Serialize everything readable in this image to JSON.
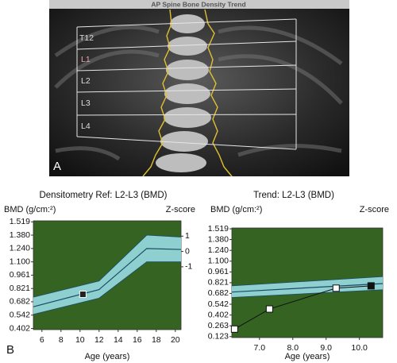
{
  "image": {
    "title": "AP Spine Bone Density Trend",
    "regions": [
      "T12",
      "L1",
      "L2",
      "L3",
      "L4"
    ],
    "panel": "A"
  },
  "panel": "B",
  "chart_data": [
    {
      "type": "line",
      "title": "Densitometry Ref: L2-L3 (BMD)",
      "ylabel": "BMD (g/cm:²)",
      "y2label": "Z-score",
      "xlabel": "Age (years)",
      "plot_color": "#356321",
      "xlim": [
        5.1,
        20.6
      ],
      "xticks": [
        6,
        8,
        10,
        12,
        14,
        16,
        18,
        20
      ],
      "ylim": [
        0.39,
        1.53
      ],
      "yticks": [
        1.519,
        {
          "value": 1.38,
          "label": "1.380"
        },
        {
          "value": 1.24,
          "label": "1.240"
        },
        {
          "value": 1.1,
          "label": "1.100"
        },
        0.961,
        0.821,
        0.682,
        0.542,
        0.402
      ],
      "y2lim": [
        -5.1,
        2.0
      ],
      "y2ticks": [
        1,
        0,
        -1
      ],
      "band": {
        "x": [
          5.1,
          12,
          17,
          20.6
        ],
        "upper": [
          0.73,
          0.9,
          1.38,
          1.36
        ],
        "lower": [
          0.55,
          0.72,
          1.1,
          1.1
        ],
        "color": "#8ecfd0"
      },
      "series": [
        {
          "x": [
            5.1,
            12,
            17,
            20.6
          ],
          "values": [
            0.63,
            0.81,
            1.24,
            1.23
          ],
          "color": "#1d4a66"
        }
      ],
      "points": {
        "x": [
          10.3
        ],
        "values": [
          0.76
        ],
        "fills": [
          "#222222"
        ],
        "connect": false
      }
    },
    {
      "type": "line",
      "title": "Trend: L2-L3 (BMD)",
      "ylabel": "BMD (g/cm:²)",
      "y2label": "Z-score",
      "xlabel": "Age (years)",
      "plot_color": "#356321",
      "xlim": [
        6.17,
        10.7
      ],
      "xticks": [
        {
          "value": 7,
          "label": "7.0"
        },
        {
          "value": 8,
          "label": "8.0"
        },
        {
          "value": 9,
          "label": "9.0"
        },
        {
          "value": 10,
          "label": "10.0"
        }
      ],
      "ylim": [
        0.11,
        1.53
      ],
      "yticks": [
        1.519,
        {
          "value": 1.38,
          "label": "1.380"
        },
        {
          "value": 1.24,
          "label": "1.240"
        },
        {
          "value": 1.1,
          "label": "1.100"
        },
        0.961,
        0.821,
        0.682,
        0.542,
        0.402,
        0.263,
        0.123
      ],
      "band": {
        "x": [
          6.17,
          10.7
        ],
        "upper": [
          0.78,
          0.9
        ],
        "lower": [
          0.63,
          0.73
        ],
        "color": "#8ecfd0"
      },
      "series": [
        {
          "x": [
            6.17,
            10.7
          ],
          "values": [
            0.7,
            0.81
          ],
          "color": "#1d4a66"
        }
      ],
      "points": {
        "x": [
          6.25,
          7.3,
          9.3,
          10.35
        ],
        "values": [
          0.22,
          0.48,
          0.75,
          0.78
        ],
        "fills": [
          "#ffffff",
          "#ffffff",
          "#ffffff",
          "#111111"
        ],
        "connect": true
      }
    }
  ]
}
